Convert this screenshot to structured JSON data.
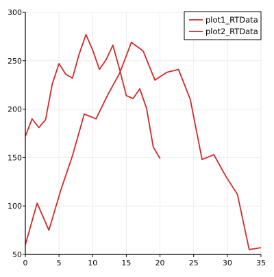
{
  "chart_data": {
    "type": "line",
    "title": "",
    "xlabel": "",
    "ylabel": "",
    "xlim": [
      0,
      35
    ],
    "ylim": [
      50,
      300
    ],
    "x_ticks": [
      0,
      5,
      10,
      15,
      20,
      25,
      30,
      35
    ],
    "y_ticks": [
      50,
      100,
      150,
      200,
      250,
      300
    ],
    "x_tick_labels": [
      "0",
      "5",
      "10",
      "15",
      "20",
      "25",
      "30",
      "35"
    ],
    "y_tick_labels": [
      "50",
      "100",
      "150",
      "200",
      "250",
      "300"
    ],
    "grid": true,
    "legend_position": "top-right",
    "colors": {
      "series": "#d62728",
      "axis": "#000000",
      "grid": "#ececec",
      "legend_border": "#000000"
    },
    "series": [
      {
        "name": "plot1_RTData",
        "x": [
          0,
          1,
          2,
          3,
          4,
          5,
          6,
          7,
          8,
          9,
          10,
          11,
          12,
          13,
          14,
          15,
          16,
          17,
          18,
          19,
          20
        ],
        "y": [
          172,
          190,
          181,
          189,
          226,
          247,
          236,
          232,
          257,
          277,
          261,
          241,
          251,
          266,
          241,
          214,
          211,
          221,
          201,
          161,
          149
        ]
      },
      {
        "name": "plot2_RTData",
        "x": [
          0,
          1.75,
          3.5,
          5.25,
          7,
          8.75,
          10.5,
          12.25,
          14,
          15.75,
          17.5,
          19.25,
          21,
          22.75,
          24.5,
          26.25,
          28,
          29.75,
          31.5,
          33.25,
          35
        ],
        "y": [
          60,
          103,
          75,
          116,
          152,
          195,
          190,
          215,
          237,
          269,
          260,
          230,
          238,
          241,
          210,
          148,
          153,
          131,
          112,
          55,
          57
        ]
      }
    ]
  }
}
